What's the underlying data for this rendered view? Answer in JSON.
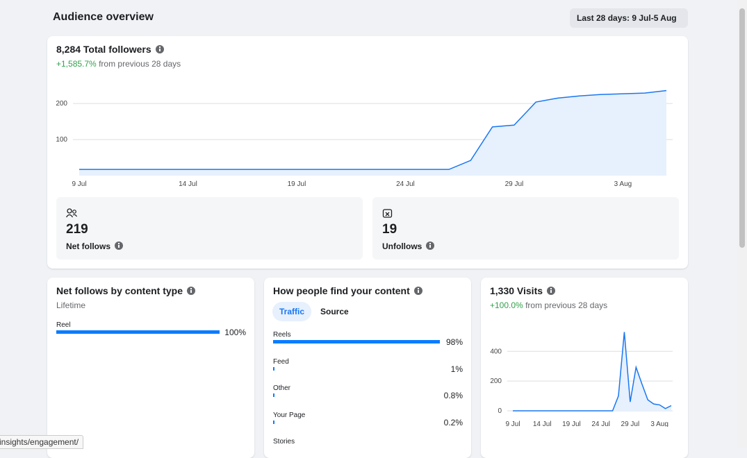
{
  "header": {
    "title": "Audience overview",
    "date_range": "Last 28 days: 9 Jul-5 Aug"
  },
  "followers": {
    "title": "8,284 Total followers",
    "change": "+1,585.7%",
    "change_text": "from previous 28 days",
    "chart_data": {
      "type": "line",
      "categories": [
        "9 Jul",
        null,
        null,
        null,
        null,
        "14 Jul",
        null,
        null,
        null,
        null,
        "19 Jul",
        null,
        null,
        null,
        null,
        "24 Jul",
        null,
        null,
        null,
        null,
        "29 Jul",
        null,
        null,
        null,
        null,
        "3 Aug",
        null,
        null
      ],
      "values": [
        17,
        17,
        17,
        17,
        17,
        17,
        17,
        17,
        17,
        17,
        17,
        17,
        17,
        17,
        17,
        17,
        17,
        17,
        42,
        135,
        140,
        204,
        215,
        221,
        225,
        227,
        229,
        236
      ],
      "color": "#1877f2",
      "ylim": [
        0,
        285
      ],
      "yticks": [
        100,
        200
      ],
      "grid": true
    }
  },
  "stats": [
    {
      "value": 219,
      "label": "Net follows"
    },
    {
      "value": 19,
      "label": "Unfollows"
    }
  ],
  "content_type": {
    "title": "Net follows by content type",
    "subtitle": "Lifetime",
    "chart_data": {
      "type": "bar",
      "orientation": "horizontal",
      "categories": [
        "Reel"
      ],
      "values": [
        100
      ],
      "value_labels": [
        "100%"
      ],
      "xlim": [
        0,
        100
      ],
      "color": "#0a7cff"
    }
  },
  "discovery": {
    "title": "How people find your content",
    "tabs": [
      "Traffic",
      "Source"
    ],
    "chart_data": {
      "type": "bar",
      "orientation": "horizontal",
      "categories": [
        "Reels",
        "Feed",
        "Other",
        "Your Page",
        "Stories"
      ],
      "values": [
        98,
        1,
        0.8,
        0.2,
        null
      ],
      "value_labels": [
        "98%",
        "1%",
        "0.8%",
        "0.2%",
        null
      ],
      "xlim": [
        0,
        100
      ],
      "color": "#0a7cff"
    }
  },
  "visits": {
    "title": "1,330 Visits",
    "change": "+100.0%",
    "change_text": "from previous 28 days",
    "chart_data": {
      "type": "line",
      "categories": [
        "9 Jul",
        null,
        null,
        null,
        null,
        "14 Jul",
        null,
        null,
        null,
        null,
        "19 Jul",
        null,
        null,
        null,
        null,
        "24 Jul",
        null,
        null,
        null,
        null,
        "29 Jul",
        null,
        null,
        null,
        null,
        "3 Aug",
        null,
        null
      ],
      "values": [
        0,
        0,
        0,
        0,
        0,
        0,
        0,
        0,
        0,
        0,
        0,
        0,
        0,
        0,
        0,
        0,
        0,
        0,
        100,
        530,
        60,
        293,
        181,
        74,
        46,
        40,
        15,
        35
      ],
      "color": "#1877f2",
      "ylim": [
        0,
        560
      ],
      "yticks": [
        0,
        200,
        400
      ],
      "grid": true
    }
  },
  "status_bar": "insights/engagement/"
}
